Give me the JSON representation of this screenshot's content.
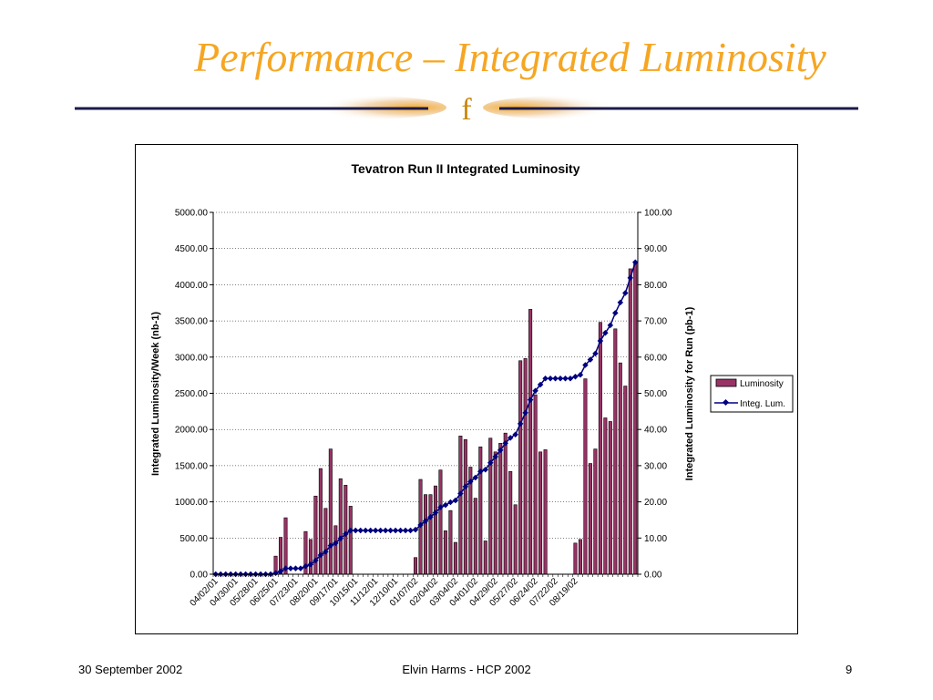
{
  "slide": {
    "title": "Performance – Integrated Luminosity",
    "deco_glyph": "f",
    "footer_date": "30 September 2002",
    "footer_center": "Elvin Harms - HCP 2002",
    "page_number": "9"
  },
  "colors": {
    "title": "#f5a623",
    "bar_fill": "#993366",
    "line": "#000080",
    "deco_glow": "#f5a623",
    "deco_line": "#1a1a4a"
  },
  "chart_data": {
    "type": "bar",
    "title": "Tevatron Run II Integrated Luminosity",
    "ylabel": "Integrated Luminosity/Week (nb-1)",
    "y2label": "Integrated Luminosity for Run (pb-1)",
    "ylim": [
      0,
      5000
    ],
    "y2lim": [
      0,
      100
    ],
    "yticks": [
      "0.00",
      "500.00",
      "1000.00",
      "1500.00",
      "2000.00",
      "2500.00",
      "3000.00",
      "3500.00",
      "4000.00",
      "4500.00",
      "5000.00"
    ],
    "y2ticks": [
      "0.00",
      "10.00",
      "20.00",
      "30.00",
      "40.00",
      "50.00",
      "60.00",
      "70.00",
      "80.00",
      "90.00",
      "100.00"
    ],
    "xtick_labels": [
      "04/02/01",
      "04/30/01",
      "05/28/01",
      "06/25/01",
      "07/23/01",
      "08/20/01",
      "09/17/01",
      "10/15/01",
      "11/12/01",
      "12/10/01",
      "01/07/02",
      "02/04/02",
      "03/04/02",
      "04/01/02",
      "04/29/02",
      "05/27/02",
      "06/24/02",
      "07/22/02",
      "08/19/02"
    ],
    "grid": true,
    "legend_position": "right",
    "series": [
      {
        "name": "Luminosity",
        "type": "bar",
        "axis": "left",
        "values": [
          0,
          0,
          0,
          0,
          0,
          0,
          0,
          0,
          0,
          0,
          0,
          0,
          250,
          510,
          780,
          0,
          0,
          0,
          590,
          480,
          1080,
          1460,
          910,
          1730,
          670,
          1320,
          1230,
          940,
          0,
          0,
          0,
          0,
          0,
          0,
          0,
          0,
          0,
          0,
          0,
          0,
          230,
          1310,
          1100,
          1100,
          1220,
          1440,
          600,
          880,
          440,
          1910,
          1860,
          1480,
          1050,
          1760,
          460,
          1880,
          1690,
          1810,
          1950,
          1420,
          960,
          2950,
          2980,
          3660,
          2480,
          1690,
          1720,
          0,
          0,
          0,
          0,
          0,
          430,
          480,
          2700,
          1530,
          1730,
          3480,
          2160,
          2110,
          3390,
          2920,
          2600,
          4220,
          4300
        ]
      },
      {
        "name": "Integ. Lum.",
        "type": "line",
        "axis": "right",
        "values": [
          0,
          0,
          0,
          0,
          0,
          0,
          0,
          0,
          0,
          0,
          0,
          0,
          0.3,
          0.8,
          1.6,
          1.6,
          1.6,
          1.6,
          2.2,
          2.7,
          3.8,
          5.3,
          6.2,
          7.9,
          8.6,
          9.9,
          11.1,
          12.1,
          12.1,
          12.1,
          12.1,
          12.1,
          12.1,
          12.1,
          12.1,
          12.1,
          12.1,
          12.1,
          12.1,
          12.1,
          12.3,
          13.6,
          14.7,
          15.8,
          17.0,
          18.5,
          19.1,
          19.9,
          20.4,
          22.3,
          24.2,
          25.6,
          26.7,
          28.4,
          28.9,
          30.8,
          32.5,
          34.3,
          36.2,
          37.7,
          38.6,
          41.6,
          44.6,
          48.2,
          50.7,
          52.4,
          54.1,
          54.1,
          54.1,
          54.1,
          54.1,
          54.1,
          54.6,
          55.1,
          57.8,
          59.3,
          61.0,
          64.5,
          66.7,
          68.8,
          72.2,
          75.1,
          77.7,
          81.9,
          86.2
        ]
      }
    ]
  }
}
